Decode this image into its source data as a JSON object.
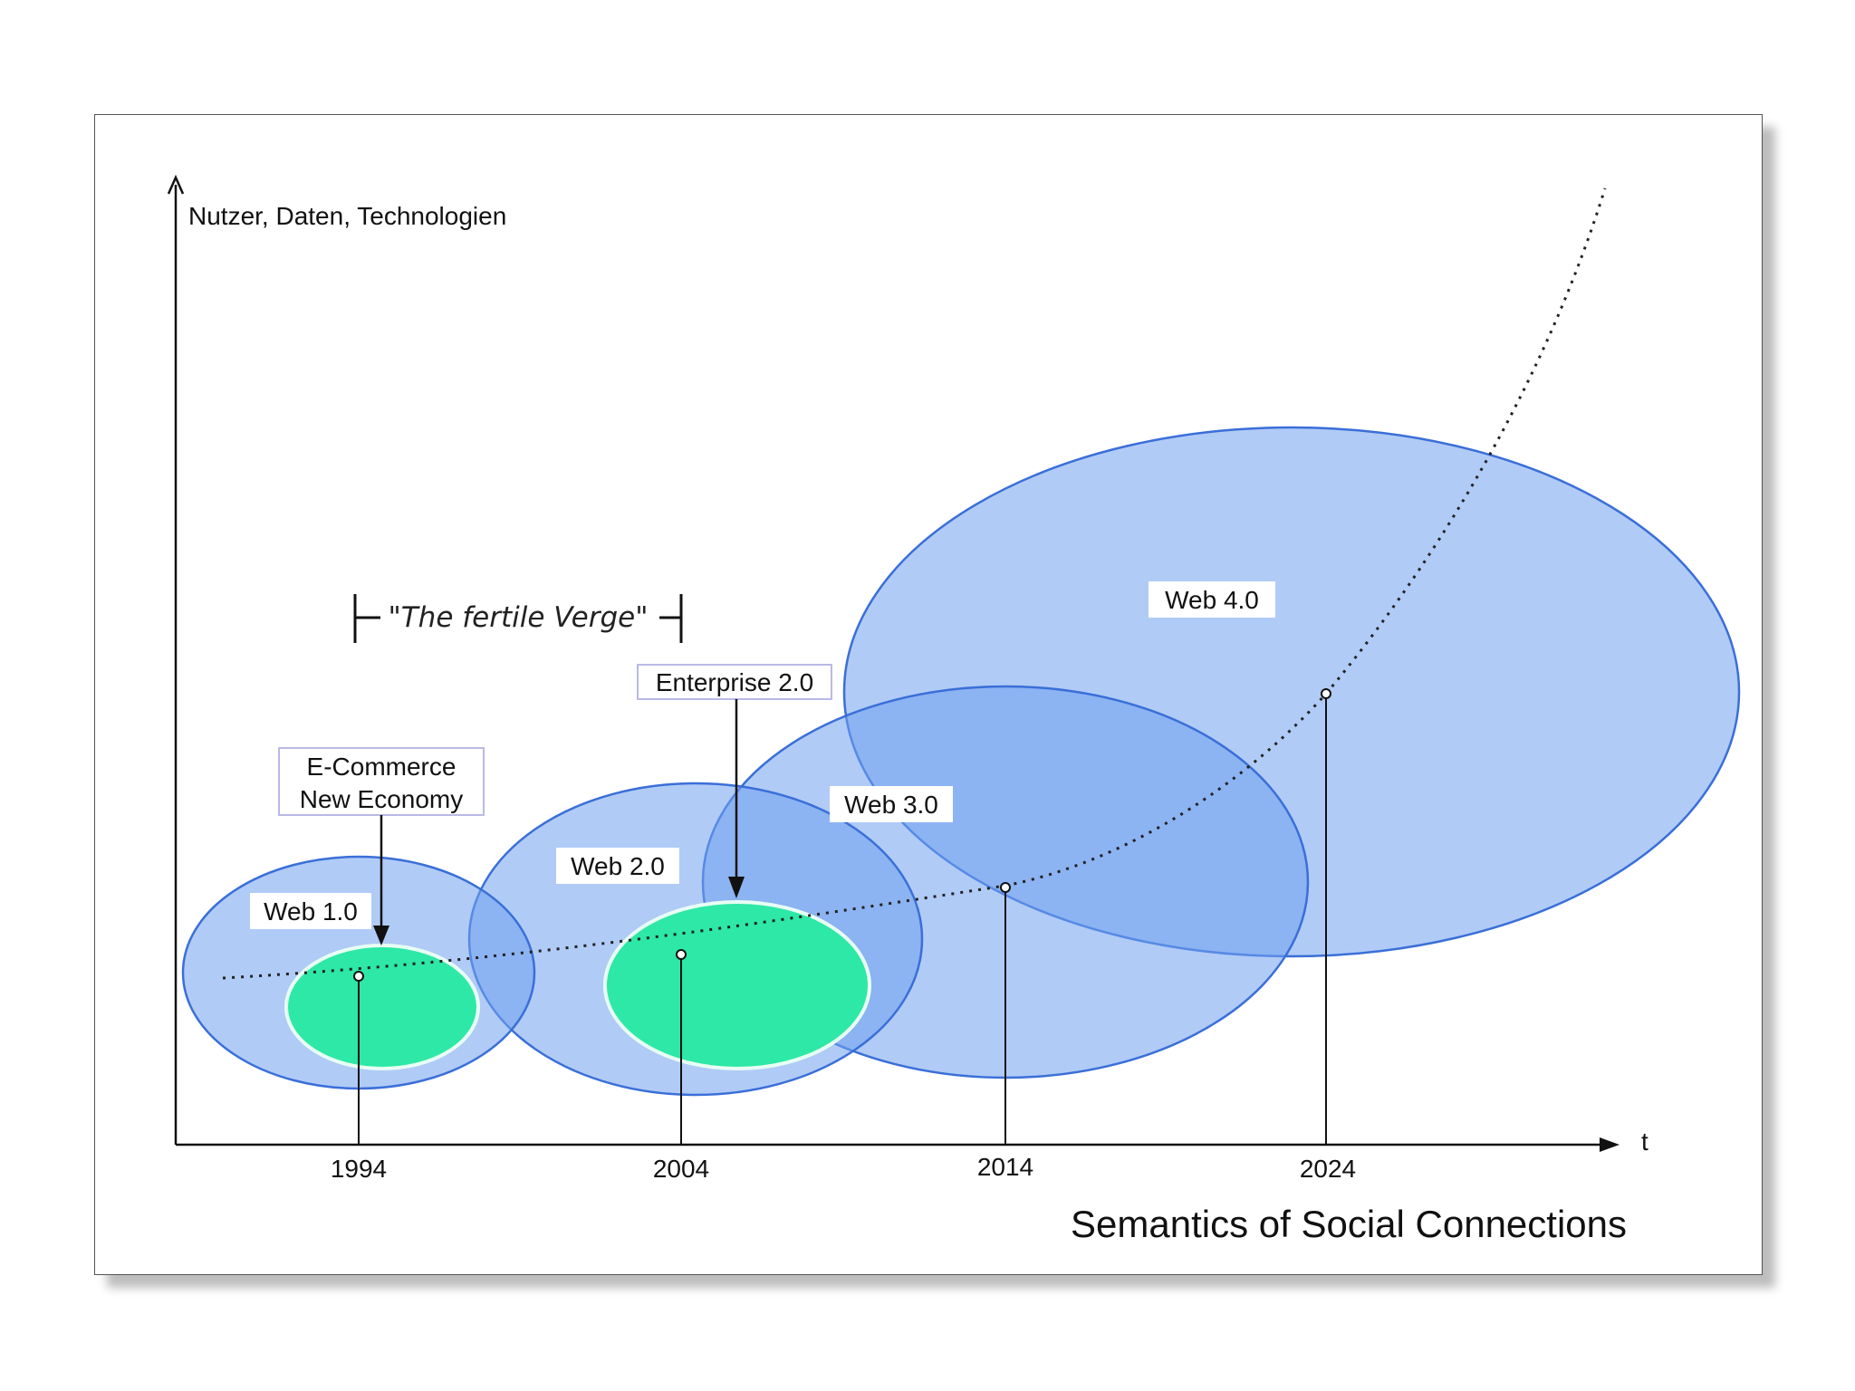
{
  "y_axis_label": "Nutzer, Daten, Technologien",
  "x_axis_label": "t",
  "caption": "Semantics of Social Connections",
  "verge_label": "\"The fertile Verge\"",
  "ticks": [
    "1994",
    "2004",
    "2014",
    "2024"
  ],
  "bubbles": {
    "web1": "Web 1.0",
    "web2": "Web 2.0",
    "web3": "Web 3.0",
    "web4": "Web 4.0"
  },
  "callouts": {
    "ecommerce_line1": "E-Commerce",
    "ecommerce_line2": "New Economy",
    "enterprise": "Enterprise 2.0"
  },
  "colors": {
    "bubble_fill": "#6fa0ee",
    "bubble_stroke": "#3a6fd8",
    "green_fill": "#2de8a6",
    "green_stroke": "#e8fff4"
  }
}
